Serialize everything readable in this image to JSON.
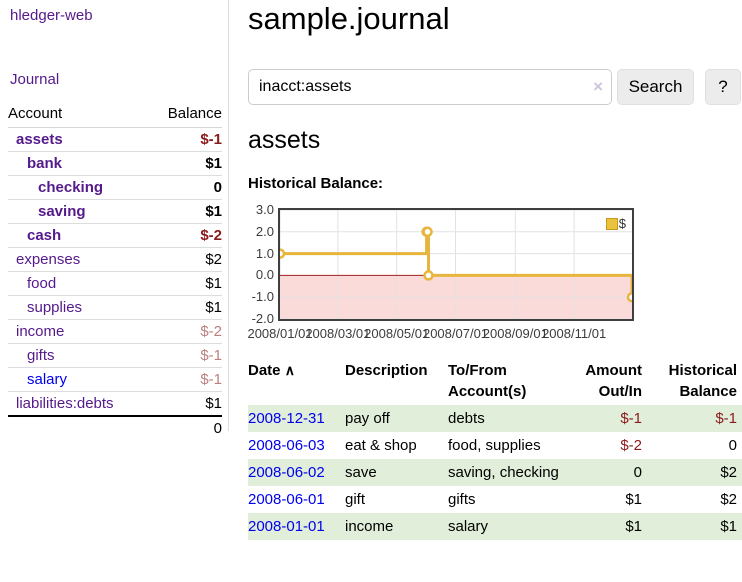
{
  "colors": {
    "link_purple": "#551a8b",
    "link_blue": "#0000ee",
    "neg_strong": "#8b1a1a",
    "neg_faded": "#bc7f7f",
    "stripe": "#e0eeda"
  },
  "sidebar": {
    "app_title": "hledger-web",
    "journal_label": "Journal",
    "accounts_table": {
      "headers": {
        "account": "Account",
        "balance": "Balance"
      },
      "rows": [
        {
          "name": "assets",
          "depth": 1,
          "bold": true,
          "balance": "$-1",
          "link_color": "purple"
        },
        {
          "name": "bank",
          "depth": 2,
          "bold": true,
          "balance": "$1",
          "link_color": "purple"
        },
        {
          "name": "checking",
          "depth": 3,
          "bold": true,
          "balance": "0",
          "link_color": "purple"
        },
        {
          "name": "saving",
          "depth": 3,
          "bold": true,
          "balance": "$1",
          "link_color": "purple"
        },
        {
          "name": "cash",
          "depth": 2,
          "bold": true,
          "balance": "$-2",
          "link_color": "purple"
        },
        {
          "name": "expenses",
          "depth": 1,
          "bold": false,
          "balance": "$2",
          "link_color": "purple"
        },
        {
          "name": "food",
          "depth": 2,
          "bold": false,
          "balance": "$1",
          "link_color": "purple"
        },
        {
          "name": "supplies",
          "depth": 2,
          "bold": false,
          "balance": "$1",
          "link_color": "purple"
        },
        {
          "name": "income",
          "depth": 1,
          "bold": false,
          "balance": "$-2",
          "link_color": "purple"
        },
        {
          "name": "gifts",
          "depth": 2,
          "bold": false,
          "balance": "$-1",
          "link_color": "purple"
        },
        {
          "name": "salary",
          "depth": 2,
          "bold": false,
          "balance": "$-1",
          "link_color": "blue"
        },
        {
          "name": "liabilities:debts",
          "depth": 1,
          "bold": false,
          "balance": "$1",
          "link_color": "purple"
        }
      ],
      "total": "0"
    }
  },
  "header": {
    "title": "sample.journal"
  },
  "search": {
    "value": "inacct:assets",
    "clear_icon": "×",
    "button_label": "Search",
    "help_label": "?"
  },
  "account_page": {
    "heading": "assets",
    "chart_label": "Historical Balance:"
  },
  "chart_data": {
    "type": "line",
    "title": "Historical Balance:",
    "legend_label": "$",
    "legend_position": "top-right",
    "x_range": [
      "2008-01-01",
      "2008-12-31"
    ],
    "y_range": [
      -2,
      3
    ],
    "x_ticks": [
      {
        "date": "2008-01-01",
        "label": "2008/01/01"
      },
      {
        "date": "2008-03-01",
        "label": "2008/03/01"
      },
      {
        "date": "2008-05-01",
        "label": "2008/05/01"
      },
      {
        "date": "2008-07-01",
        "label": "2008/07/01"
      },
      {
        "date": "2008-09-01",
        "label": "2008/09/01"
      },
      {
        "date": "2008-11-01",
        "label": "2008/11/01"
      }
    ],
    "y_ticks": [
      {
        "value": 3,
        "label": "3.0"
      },
      {
        "value": 2,
        "label": "2.0"
      },
      {
        "value": 1,
        "label": "1.0"
      },
      {
        "value": 0,
        "label": "0.0"
      },
      {
        "value": -1,
        "label": "-1.0"
      },
      {
        "value": -2,
        "label": "-2.0"
      }
    ],
    "series": [
      {
        "name": "$",
        "style": "steps",
        "color": "#e7b53c",
        "points": [
          [
            "2008-01-01",
            1
          ],
          [
            "2008-06-01",
            2
          ],
          [
            "2008-06-02",
            2
          ],
          [
            "2008-06-03",
            0
          ],
          [
            "2008-12-31",
            -1
          ]
        ]
      }
    ],
    "grid": true,
    "grid_color": "#e2e2e2",
    "negative_region_fill": "#fbdada",
    "zero_line_color": "#9e2020",
    "marker": {
      "fill": "#ffffff",
      "radius": 4
    }
  },
  "transactions_table": {
    "headers": {
      "date": "Date",
      "sort_icon": "∧",
      "description": "Description",
      "accounts_line1": "To/From",
      "accounts_line2": "Account(s)",
      "amount_line1": "Amount",
      "amount_line2": "Out/In",
      "balance_line1": "Historical",
      "balance_line2": "Balance"
    },
    "rows": [
      {
        "date": "2008-12-31",
        "description": "pay off",
        "accounts": "debts",
        "amount": "$-1",
        "balance": "$-1"
      },
      {
        "date": "2008-06-03",
        "description": "eat & shop",
        "accounts": "food, supplies",
        "amount": "$-2",
        "balance": "0"
      },
      {
        "date": "2008-06-02",
        "description": "save",
        "accounts": "saving, checking",
        "amount": "0",
        "balance": "$2"
      },
      {
        "date": "2008-06-01",
        "description": "gift",
        "accounts": "gifts",
        "amount": "$1",
        "balance": "$2"
      },
      {
        "date": "2008-01-01",
        "description": "income",
        "accounts": "salary",
        "amount": "$1",
        "balance": "$1"
      }
    ]
  }
}
